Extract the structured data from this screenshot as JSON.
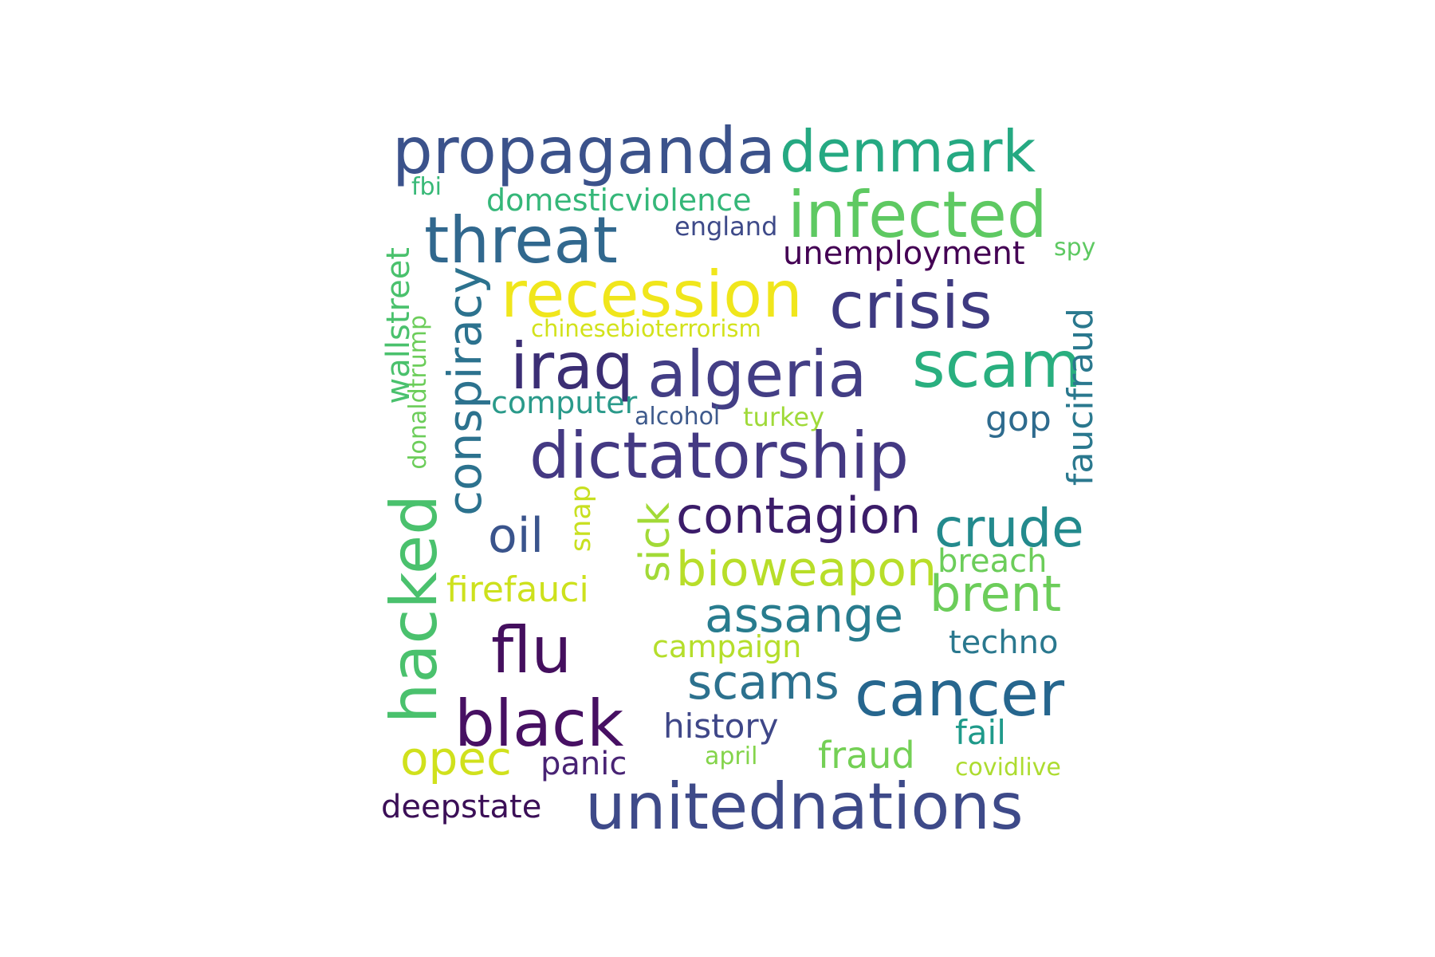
{
  "words": [
    {
      "text": "propaganda",
      "color": "#3b528b"
    },
    {
      "text": "denmark",
      "color": "#25a982"
    },
    {
      "text": "infected",
      "color": "#5ec962"
    },
    {
      "text": "threat",
      "color": "#31688e"
    },
    {
      "text": "domesticviolence",
      "color": "#35b779"
    },
    {
      "text": "fbi",
      "color": "#38b977"
    },
    {
      "text": "england",
      "color": "#3e4a89"
    },
    {
      "text": "unemployment",
      "color": "#440154"
    },
    {
      "text": "spy",
      "color": "#5ec962"
    },
    {
      "text": "recession",
      "color": "#f0e61c"
    },
    {
      "text": "crisis",
      "color": "#3e3a81"
    },
    {
      "text": "conspiracy",
      "color": "#2c728e"
    },
    {
      "text": "wallstreet",
      "color": "#4ac16d"
    },
    {
      "text": "chinesebioterrorism",
      "color": "#d2e21b"
    },
    {
      "text": "donaldtrump",
      "color": "#6ccd5a"
    },
    {
      "text": "iraq",
      "color": "#3b2e74"
    },
    {
      "text": "algeria",
      "color": "#433e85"
    },
    {
      "text": "scam",
      "color": "#29af7f"
    },
    {
      "text": "faucifraud",
      "color": "#2a788e"
    },
    {
      "text": "computer",
      "color": "#2a9a8a"
    },
    {
      "text": "alcohol",
      "color": "#3e5a8c"
    },
    {
      "text": "turkey",
      "color": "#a0da39"
    },
    {
      "text": "gop",
      "color": "#2e6b8e"
    },
    {
      "text": "dictatorship",
      "color": "#443983"
    },
    {
      "text": "hacked",
      "color": "#4ac16d"
    },
    {
      "text": "snap",
      "color": "#c8e020"
    },
    {
      "text": "oil",
      "color": "#3a548c"
    },
    {
      "text": "sick",
      "color": "#a2da37"
    },
    {
      "text": "contagion",
      "color": "#3b1c69"
    },
    {
      "text": "crude",
      "color": "#238a8d"
    },
    {
      "text": "bioweapon",
      "color": "#b8de29"
    },
    {
      "text": "breach",
      "color": "#6ccd5a"
    },
    {
      "text": "firefauci",
      "color": "#cde11d"
    },
    {
      "text": "brent",
      "color": "#6ccd5a"
    },
    {
      "text": "assange",
      "color": "#287c8e"
    },
    {
      "text": "flu",
      "color": "#440f5e"
    },
    {
      "text": "campaign",
      "color": "#b5de2b"
    },
    {
      "text": "techno",
      "color": "#2a788e"
    },
    {
      "text": "scams",
      "color": "#2c718e"
    },
    {
      "text": "cancer",
      "color": "#26668e"
    },
    {
      "text": "black",
      "color": "#471063"
    },
    {
      "text": "history",
      "color": "#3f4788"
    },
    {
      "text": "fail",
      "color": "#1f9a8a"
    },
    {
      "text": "opec",
      "color": "#d0e11c"
    },
    {
      "text": "panic",
      "color": "#482374"
    },
    {
      "text": "april",
      "color": "#84d44b"
    },
    {
      "text": "fraud",
      "color": "#74d055"
    },
    {
      "text": "covidlive",
      "color": "#addc30"
    },
    {
      "text": "deepstate",
      "color": "#3b0f57"
    },
    {
      "text": "unitednations",
      "color": "#3e4a89"
    }
  ]
}
